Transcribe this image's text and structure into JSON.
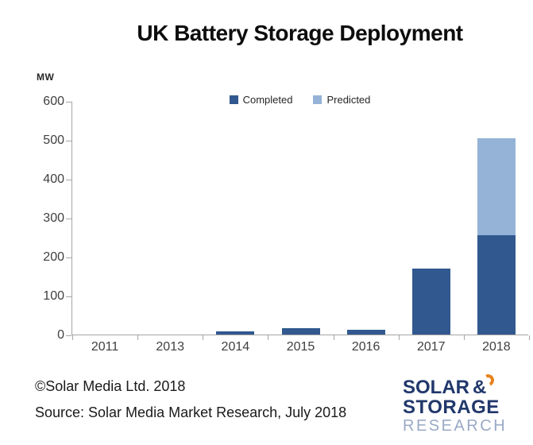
{
  "title": "UK Battery Storage Deployment",
  "y_axis_unit": "MW",
  "footer": {
    "copyright": "©Solar Media Ltd. 2018",
    "source": "Source: Solar Media Market Research, July 2018"
  },
  "logo": {
    "line1": "SOLAR",
    "amp": "&",
    "line2": "STORAGE",
    "line3": "RESEARCH",
    "navy": "#21386b",
    "orange": "#e8821e",
    "grey": "#9aa9c6"
  },
  "colors": {
    "completed": "#31588f",
    "predicted": "#95b3d7",
    "axis": "#a6a6a6",
    "tick_text": "#404040"
  },
  "chart_data": {
    "type": "bar",
    "stacked": true,
    "title": "UK Battery Storage Deployment",
    "ylabel": "MW",
    "ylim": [
      0,
      600
    ],
    "yticks": [
      0,
      100,
      200,
      300,
      400,
      500,
      600
    ],
    "grid": false,
    "legend_position": "top-center",
    "categories": [
      "2011",
      "2013",
      "2014",
      "2015",
      "2016",
      "2017",
      "2018"
    ],
    "series": [
      {
        "name": "Completed",
        "color": "#31588f",
        "values": [
          0,
          0,
          8,
          17,
          12,
          170,
          255
        ]
      },
      {
        "name": "Predicted",
        "color": "#95b3d7",
        "values": [
          0,
          0,
          0,
          0,
          0,
          0,
          250
        ]
      }
    ]
  }
}
